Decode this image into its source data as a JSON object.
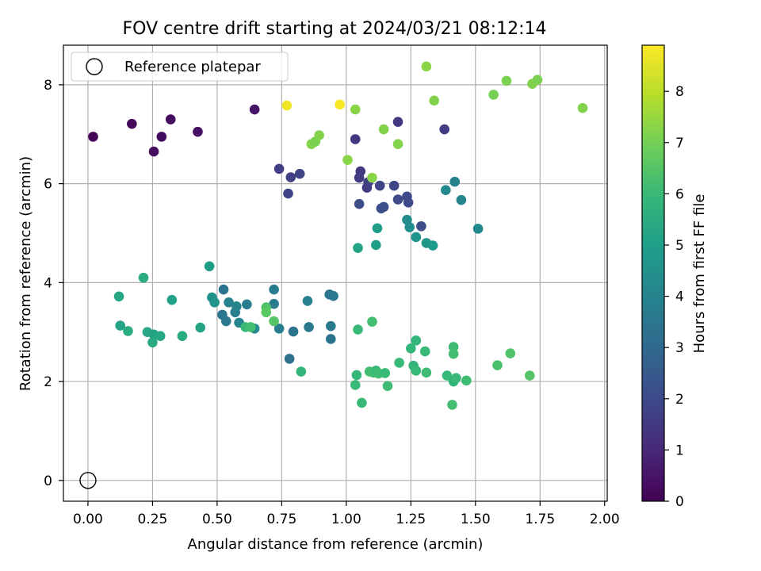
{
  "chart_data": {
    "type": "scatter",
    "title": "FOV centre drift starting at 2024/03/21 08:12:14",
    "xlabel": "Angular distance from reference (arcmin)",
    "ylabel": "Rotation from reference (arcmin)",
    "xlim": [
      -0.095,
      2.01
    ],
    "ylim": [
      -0.42,
      8.8
    ],
    "xticks": [
      0.0,
      0.25,
      0.5,
      0.75,
      1.0,
      1.25,
      1.5,
      1.75,
      2.0
    ],
    "xtick_labels": [
      "0.00",
      "0.25",
      "0.50",
      "0.75",
      "1.00",
      "1.25",
      "1.50",
      "1.75",
      "2.00"
    ],
    "yticks": [
      0,
      2,
      4,
      6,
      8
    ],
    "ytick_labels": [
      "0",
      "2",
      "4",
      "6",
      "8"
    ],
    "grid": true,
    "legend": {
      "position": "top-left",
      "entries": [
        "Reference platepar"
      ]
    },
    "reference_point": {
      "x": 0.0,
      "y": 0.0,
      "marker": "open-circle",
      "color": "#000000"
    },
    "colorbar": {
      "label": "Hours from first FF file",
      "min": 0,
      "max": 8.9,
      "ticks": [
        0,
        1,
        2,
        3,
        4,
        5,
        6,
        7,
        8
      ],
      "tick_labels": [
        "0",
        "1",
        "2",
        "3",
        "4",
        "5",
        "6",
        "7",
        "8"
      ],
      "colormap": "viridis",
      "colormap_stops": [
        "#440154",
        "#482878",
        "#3e4989",
        "#31688e",
        "#26828e",
        "#1f9e89",
        "#35b779",
        "#6ece58",
        "#b5de2b",
        "#fde725"
      ]
    },
    "points": [
      {
        "x": 0.02,
        "y": 6.95,
        "c": 0.1
      },
      {
        "x": 0.17,
        "y": 7.21,
        "c": 0.2
      },
      {
        "x": 0.255,
        "y": 6.65,
        "c": 0.3
      },
      {
        "x": 0.285,
        "y": 6.95,
        "c": 0.3
      },
      {
        "x": 0.32,
        "y": 7.3,
        "c": 0.3
      },
      {
        "x": 0.425,
        "y": 7.05,
        "c": 0.4
      },
      {
        "x": 0.645,
        "y": 7.5,
        "c": 0.5
      },
      {
        "x": 1.035,
        "y": 6.9,
        "c": 1.4
      },
      {
        "x": 1.2,
        "y": 7.25,
        "c": 1.5
      },
      {
        "x": 1.38,
        "y": 7.1,
        "c": 1.6
      },
      {
        "x": 0.74,
        "y": 6.3,
        "c": 1.7
      },
      {
        "x": 0.785,
        "y": 6.13,
        "c": 1.7
      },
      {
        "x": 0.82,
        "y": 6.2,
        "c": 1.8
      },
      {
        "x": 0.775,
        "y": 5.8,
        "c": 1.8
      },
      {
        "x": 1.055,
        "y": 6.25,
        "c": 1.5
      },
      {
        "x": 1.05,
        "y": 6.12,
        "c": 1.6
      },
      {
        "x": 1.08,
        "y": 5.92,
        "c": 1.6
      },
      {
        "x": 1.085,
        "y": 6.03,
        "c": 1.7
      },
      {
        "x": 1.13,
        "y": 5.96,
        "c": 1.8
      },
      {
        "x": 1.185,
        "y": 5.96,
        "c": 1.9
      },
      {
        "x": 1.2,
        "y": 5.68,
        "c": 2.0
      },
      {
        "x": 1.235,
        "y": 5.74,
        "c": 2.0
      },
      {
        "x": 1.24,
        "y": 5.62,
        "c": 2.0
      },
      {
        "x": 1.05,
        "y": 5.59,
        "c": 2.1
      },
      {
        "x": 1.135,
        "y": 5.5,
        "c": 2.2
      },
      {
        "x": 1.145,
        "y": 5.53,
        "c": 2.2
      },
      {
        "x": 1.29,
        "y": 5.14,
        "c": 2.1
      },
      {
        "x": 1.385,
        "y": 5.87,
        "c": 4.2
      },
      {
        "x": 1.42,
        "y": 6.04,
        "c": 4.0
      },
      {
        "x": 1.445,
        "y": 5.67,
        "c": 4.1
      },
      {
        "x": 1.235,
        "y": 5.27,
        "c": 4.3
      },
      {
        "x": 1.245,
        "y": 5.12,
        "c": 4.4
      },
      {
        "x": 1.27,
        "y": 4.92,
        "c": 4.6
      },
      {
        "x": 1.31,
        "y": 4.8,
        "c": 4.7
      },
      {
        "x": 1.335,
        "y": 4.75,
        "c": 4.8
      },
      {
        "x": 1.12,
        "y": 5.1,
        "c": 4.9
      },
      {
        "x": 1.115,
        "y": 4.76,
        "c": 5.0
      },
      {
        "x": 1.045,
        "y": 4.7,
        "c": 5.2
      },
      {
        "x": 1.51,
        "y": 5.09,
        "c": 4.2
      },
      {
        "x": 0.72,
        "y": 3.86,
        "c": 3.8
      },
      {
        "x": 0.72,
        "y": 3.57,
        "c": 3.7
      },
      {
        "x": 0.74,
        "y": 3.07,
        "c": 3.8
      },
      {
        "x": 0.85,
        "y": 3.63,
        "c": 3.9
      },
      {
        "x": 0.935,
        "y": 3.76,
        "c": 3.5
      },
      {
        "x": 0.95,
        "y": 3.73,
        "c": 3.6
      },
      {
        "x": 0.795,
        "y": 3.01,
        "c": 3.4
      },
      {
        "x": 0.855,
        "y": 3.1,
        "c": 3.6
      },
      {
        "x": 0.94,
        "y": 3.12,
        "c": 3.6
      },
      {
        "x": 0.94,
        "y": 2.86,
        "c": 3.4
      },
      {
        "x": 0.78,
        "y": 2.46,
        "c": 3.3
      },
      {
        "x": 0.525,
        "y": 3.86,
        "c": 3.4
      },
      {
        "x": 0.52,
        "y": 3.35,
        "c": 3.5
      },
      {
        "x": 0.535,
        "y": 3.22,
        "c": 3.6
      },
      {
        "x": 0.545,
        "y": 3.6,
        "c": 3.9
      },
      {
        "x": 0.57,
        "y": 3.4,
        "c": 3.8
      },
      {
        "x": 0.575,
        "y": 3.52,
        "c": 4.0
      },
      {
        "x": 0.585,
        "y": 3.19,
        "c": 4.1
      },
      {
        "x": 0.615,
        "y": 3.56,
        "c": 3.7
      },
      {
        "x": 0.645,
        "y": 3.07,
        "c": 4.3
      },
      {
        "x": 0.47,
        "y": 4.33,
        "c": 4.9
      },
      {
        "x": 0.48,
        "y": 3.7,
        "c": 4.5
      },
      {
        "x": 0.49,
        "y": 3.6,
        "c": 4.6
      },
      {
        "x": 0.12,
        "y": 3.72,
        "c": 5.3
      },
      {
        "x": 0.215,
        "y": 4.1,
        "c": 5.5
      },
      {
        "x": 0.125,
        "y": 3.13,
        "c": 5.2
      },
      {
        "x": 0.155,
        "y": 3.02,
        "c": 5.5
      },
      {
        "x": 0.23,
        "y": 3.0,
        "c": 5.3
      },
      {
        "x": 0.255,
        "y": 2.95,
        "c": 5.2
      },
      {
        "x": 0.25,
        "y": 2.79,
        "c": 5.4
      },
      {
        "x": 0.28,
        "y": 2.92,
        "c": 5.3
      },
      {
        "x": 0.325,
        "y": 3.65,
        "c": 5.1
      },
      {
        "x": 0.365,
        "y": 2.92,
        "c": 5.5
      },
      {
        "x": 0.435,
        "y": 3.09,
        "c": 5.2
      },
      {
        "x": 0.61,
        "y": 3.1,
        "c": 6.0
      },
      {
        "x": 0.63,
        "y": 3.1,
        "c": 6.2
      },
      {
        "x": 0.69,
        "y": 3.5,
        "c": 6.4
      },
      {
        "x": 0.69,
        "y": 3.4,
        "c": 6.6
      },
      {
        "x": 0.72,
        "y": 3.22,
        "c": 6.5
      },
      {
        "x": 0.825,
        "y": 2.2,
        "c": 5.9
      },
      {
        "x": 1.045,
        "y": 3.05,
        "c": 6.0
      },
      {
        "x": 1.1,
        "y": 3.21,
        "c": 6.2
      },
      {
        "x": 1.04,
        "y": 2.13,
        "c": 5.9
      },
      {
        "x": 1.035,
        "y": 1.93,
        "c": 6.0
      },
      {
        "x": 1.06,
        "y": 1.57,
        "c": 6.0
      },
      {
        "x": 1.09,
        "y": 2.2,
        "c": 6.2
      },
      {
        "x": 1.105,
        "y": 2.18,
        "c": 6.1
      },
      {
        "x": 1.115,
        "y": 2.22,
        "c": 6.0
      },
      {
        "x": 1.125,
        "y": 2.16,
        "c": 6.1
      },
      {
        "x": 1.15,
        "y": 2.17,
        "c": 6.0
      },
      {
        "x": 1.16,
        "y": 1.91,
        "c": 6.1
      },
      {
        "x": 1.205,
        "y": 2.38,
        "c": 6.0
      },
      {
        "x": 1.25,
        "y": 2.67,
        "c": 5.9
      },
      {
        "x": 1.26,
        "y": 2.32,
        "c": 5.9
      },
      {
        "x": 1.27,
        "y": 2.22,
        "c": 6.0
      },
      {
        "x": 1.27,
        "y": 2.83,
        "c": 5.9
      },
      {
        "x": 1.305,
        "y": 2.61,
        "c": 6.0
      },
      {
        "x": 1.31,
        "y": 2.18,
        "c": 6.1
      },
      {
        "x": 1.39,
        "y": 2.12,
        "c": 6.0
      },
      {
        "x": 1.415,
        "y": 2.0,
        "c": 5.8
      },
      {
        "x": 1.415,
        "y": 2.7,
        "c": 6.1
      },
      {
        "x": 1.415,
        "y": 2.56,
        "c": 6.2
      },
      {
        "x": 1.425,
        "y": 2.07,
        "c": 6.0
      },
      {
        "x": 1.41,
        "y": 1.53,
        "c": 6.2
      },
      {
        "x": 1.465,
        "y": 2.02,
        "c": 6.1
      },
      {
        "x": 1.585,
        "y": 2.33,
        "c": 6.3
      },
      {
        "x": 1.635,
        "y": 2.57,
        "c": 6.4
      },
      {
        "x": 1.71,
        "y": 2.12,
        "c": 6.5
      },
      {
        "x": 0.77,
        "y": 7.58,
        "c": 8.7
      },
      {
        "x": 0.975,
        "y": 7.6,
        "c": 8.8
      },
      {
        "x": 1.035,
        "y": 7.5,
        "c": 7.3
      },
      {
        "x": 1.31,
        "y": 8.37,
        "c": 7.3
      },
      {
        "x": 1.34,
        "y": 7.68,
        "c": 7.2
      },
      {
        "x": 0.865,
        "y": 6.8,
        "c": 7.2
      },
      {
        "x": 0.88,
        "y": 6.85,
        "c": 7.1
      },
      {
        "x": 0.895,
        "y": 6.98,
        "c": 7.2
      },
      {
        "x": 1.005,
        "y": 6.48,
        "c": 7.3
      },
      {
        "x": 1.1,
        "y": 6.12,
        "c": 7.3
      },
      {
        "x": 1.145,
        "y": 7.1,
        "c": 7.2
      },
      {
        "x": 1.2,
        "y": 6.8,
        "c": 7.2
      },
      {
        "x": 1.57,
        "y": 7.8,
        "c": 7.0
      },
      {
        "x": 1.62,
        "y": 8.08,
        "c": 7.1
      },
      {
        "x": 1.72,
        "y": 8.02,
        "c": 7.2
      },
      {
        "x": 1.74,
        "y": 8.1,
        "c": 7.1
      },
      {
        "x": 1.915,
        "y": 7.53,
        "c": 7.2
      }
    ]
  }
}
